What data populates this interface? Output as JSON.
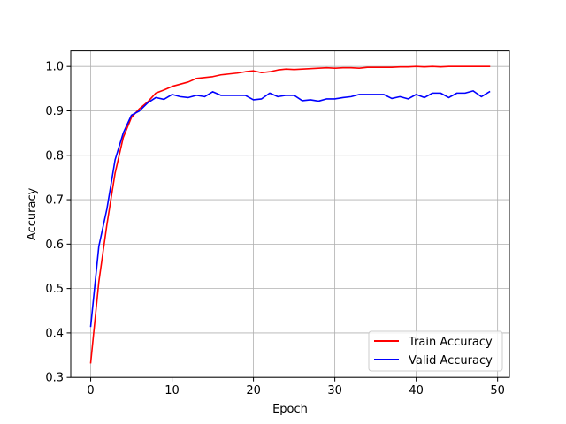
{
  "chart_data": {
    "type": "line",
    "title": "",
    "xlabel": "Epoch",
    "ylabel": "Accuracy",
    "xlim": [
      -2.45,
      51.45
    ],
    "ylim": [
      0.3,
      1.035
    ],
    "xticks": [
      0,
      10,
      20,
      30,
      40,
      50
    ],
    "xtick_labels": [
      "0",
      "10",
      "20",
      "30",
      "40",
      "50"
    ],
    "yticks": [
      0.3,
      0.4,
      0.5,
      0.6,
      0.7,
      0.8,
      0.9,
      1.0
    ],
    "ytick_labels": [
      "0.3",
      "0.4",
      "0.5",
      "0.6",
      "0.7",
      "0.8",
      "0.9",
      "1.0"
    ],
    "grid": true,
    "legend_position": "bottom-right",
    "x": [
      0,
      1,
      2,
      3,
      4,
      5,
      6,
      7,
      8,
      9,
      10,
      11,
      12,
      13,
      14,
      15,
      16,
      17,
      18,
      19,
      20,
      21,
      22,
      23,
      24,
      25,
      26,
      27,
      28,
      29,
      30,
      31,
      32,
      33,
      34,
      35,
      36,
      37,
      38,
      39,
      40,
      41,
      42,
      43,
      44,
      45,
      46,
      47,
      48,
      49
    ],
    "series": [
      {
        "name": "Train Accuracy",
        "color": "#ff0000",
        "values": [
          0.333,
          0.515,
          0.645,
          0.76,
          0.84,
          0.885,
          0.905,
          0.92,
          0.94,
          0.947,
          0.955,
          0.96,
          0.965,
          0.973,
          0.975,
          0.977,
          0.981,
          0.983,
          0.985,
          0.988,
          0.99,
          0.986,
          0.988,
          0.992,
          0.994,
          0.993,
          0.994,
          0.995,
          0.996,
          0.997,
          0.996,
          0.997,
          0.997,
          0.996,
          0.998,
          0.998,
          0.998,
          0.998,
          0.999,
          0.999,
          1.0,
          0.999,
          1.0,
          0.999,
          1.0,
          1.0,
          1.0,
          1.0,
          1.0,
          1.0
        ]
      },
      {
        "name": "Valid Accuracy",
        "color": "#0000ff",
        "values": [
          0.415,
          0.595,
          0.68,
          0.79,
          0.85,
          0.89,
          0.9,
          0.918,
          0.93,
          0.926,
          0.937,
          0.932,
          0.93,
          0.935,
          0.932,
          0.943,
          0.935,
          0.935,
          0.935,
          0.935,
          0.925,
          0.927,
          0.94,
          0.932,
          0.935,
          0.935,
          0.923,
          0.925,
          0.922,
          0.927,
          0.927,
          0.93,
          0.932,
          0.937,
          0.937,
          0.937,
          0.937,
          0.928,
          0.932,
          0.927,
          0.937,
          0.93,
          0.94,
          0.94,
          0.93,
          0.94,
          0.94,
          0.945,
          0.932,
          0.943
        ]
      }
    ]
  }
}
